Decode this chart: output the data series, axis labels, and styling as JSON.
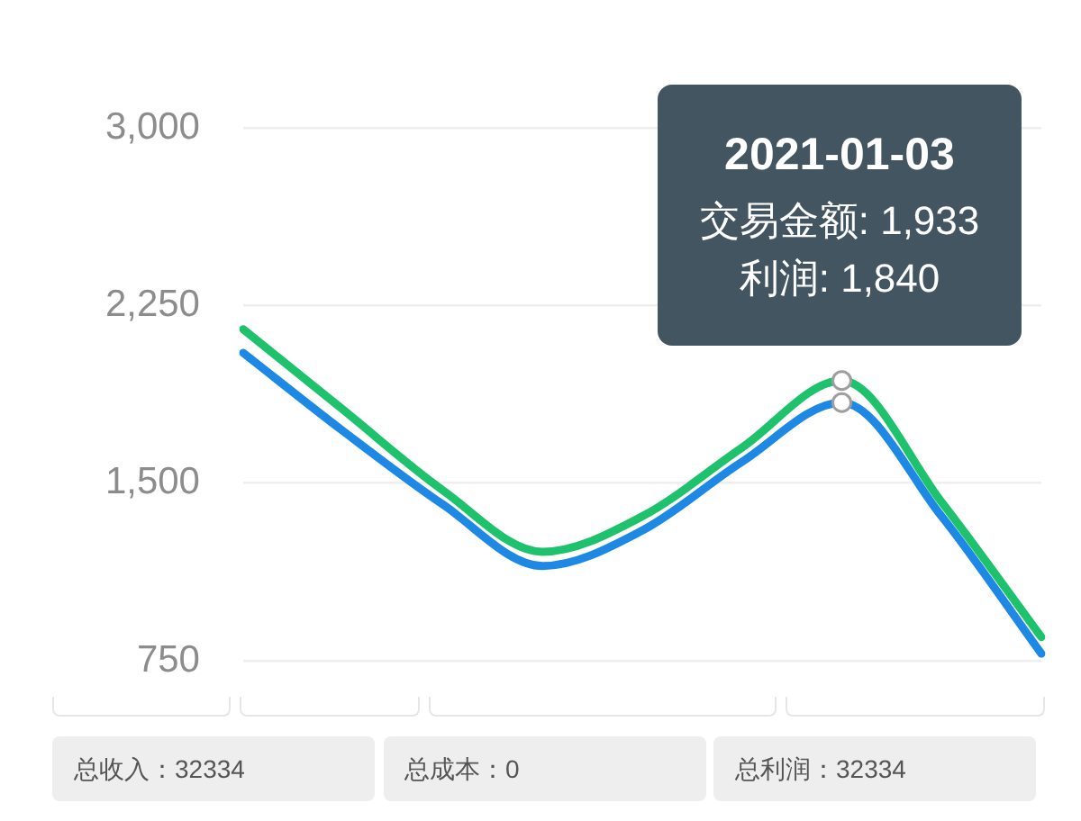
{
  "chart_data": {
    "type": "line",
    "categories": [
      null,
      null,
      null,
      null,
      null,
      null,
      null,
      null,
      null
    ],
    "series": [
      {
        "color": "#1ec26c",
        "values": [
          2150,
          1810,
          1470,
          1210,
          1360,
          1650,
          1933,
          1420,
          850
        ]
      },
      {
        "color": "#1e88e5",
        "values": [
          2050,
          1720,
          1410,
          1150,
          1300,
          1590,
          1840,
          1360,
          780
        ]
      },
      {
        "type": "scatter",
        "marker": "circle",
        "color": "#9e9e9e",
        "values": [
          null,
          null,
          null,
          null,
          null,
          null,
          1933,
          null,
          null
        ]
      },
      {
        "type": "scatter",
        "marker": "circle",
        "color": "#9e9e9e",
        "values": [
          null,
          null,
          null,
          null,
          null,
          null,
          1840,
          null,
          null
        ]
      }
    ],
    "ylim": [
      750,
      3000
    ],
    "yticks": [
      750,
      {
        "value": 1500,
        "label": "1,500"
      },
      {
        "value": 2250,
        "label": "2,250"
      },
      {
        "value": 3000,
        "label": "3,000"
      }
    ],
    "grid": "y",
    "marker": "none",
    "line_style": "solid",
    "annotations": [
      "2021-01-03",
      "交易金额: 1,933",
      "利润: 1,840",
      "总收入：32334",
      "总成本：0",
      "总利润：32334"
    ]
  }
}
